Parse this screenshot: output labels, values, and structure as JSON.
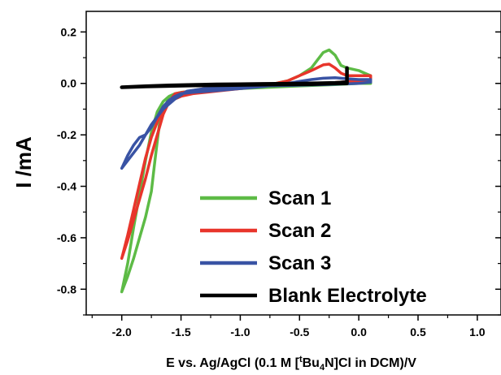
{
  "chart_data": {
    "type": "line",
    "title": "",
    "xlabel": {
      "before": "E vs. Ag/AgCl (0.1 M [",
      "sup": "t",
      "mid": "Bu",
      "sub": "4",
      "after": "N]Cl in DCM)/V"
    },
    "ylabel": "I /mA",
    "xlim": [
      -2.3,
      1.2
    ],
    "ylim": [
      -0.9,
      0.28
    ],
    "x_ticks": [
      "-2.0",
      "-1.5",
      "-1.0",
      "-0.5",
      "0.0",
      "0.5",
      "1.0"
    ],
    "x_tick_values": [
      -2.0,
      -1.5,
      -1.0,
      -0.5,
      0.0,
      0.5,
      1.0
    ],
    "y_ticks": [
      "0.2",
      "0.0",
      "-0.2",
      "-0.4",
      "-0.6",
      "-0.8"
    ],
    "y_tick_values": [
      0.2,
      0.0,
      -0.2,
      -0.4,
      -0.6,
      -0.8
    ],
    "grid": false,
    "legend_position": "bottom-right",
    "series": [
      {
        "name": "Scan 1",
        "color": "#5dbb46",
        "x": [
          -2.0,
          -1.95,
          -1.9,
          -1.85,
          -1.8,
          -1.75,
          -1.7,
          -1.65,
          -1.6,
          -1.55,
          -1.5,
          -1.4,
          -1.2,
          -1.0,
          -0.8,
          -0.6,
          -0.5,
          -0.4,
          -0.35,
          -0.3,
          -0.25,
          -0.2,
          -0.15,
          -0.1,
          -0.05,
          0.0,
          0.05,
          0.1,
          0.1,
          0.0,
          -0.2,
          -0.5,
          -1.0,
          -1.4,
          -1.6,
          -1.68,
          -1.72,
          -1.75,
          -1.8,
          -1.85,
          -1.9,
          -1.95,
          -2.0
        ],
        "y": [
          -0.81,
          -0.7,
          -0.56,
          -0.43,
          -0.3,
          -0.19,
          -0.11,
          -0.07,
          -0.05,
          -0.04,
          -0.035,
          -0.03,
          -0.025,
          -0.018,
          -0.01,
          0.01,
          0.03,
          0.06,
          0.09,
          0.12,
          0.13,
          0.11,
          0.07,
          0.06,
          0.055,
          0.05,
          0.04,
          0.03,
          0.0,
          0.0,
          -0.005,
          -0.01,
          -0.02,
          -0.03,
          -0.05,
          -0.15,
          -0.3,
          -0.42,
          -0.52,
          -0.6,
          -0.68,
          -0.75,
          -0.81
        ]
      },
      {
        "name": "Scan 2",
        "color": "#e8352b",
        "x": [
          -2.0,
          -1.95,
          -1.9,
          -1.85,
          -1.8,
          -1.75,
          -1.7,
          -1.65,
          -1.6,
          -1.55,
          -1.5,
          -1.4,
          -1.2,
          -1.0,
          -0.8,
          -0.6,
          -0.5,
          -0.4,
          -0.3,
          -0.25,
          -0.2,
          -0.15,
          -0.1,
          -0.05,
          0.0,
          0.1,
          0.1,
          0.0,
          -0.3,
          -0.8,
          -1.3,
          -1.55,
          -1.6,
          -1.65,
          -1.7,
          -1.75,
          -1.8,
          -1.85,
          -1.9,
          -1.95,
          -2.0
        ],
        "y": [
          -0.68,
          -0.59,
          -0.49,
          -0.39,
          -0.29,
          -0.21,
          -0.15,
          -0.1,
          -0.075,
          -0.06,
          -0.05,
          -0.04,
          -0.03,
          -0.02,
          -0.01,
          0.01,
          0.03,
          0.05,
          0.072,
          0.075,
          0.06,
          0.04,
          0.03,
          0.03,
          0.03,
          0.03,
          0.01,
          0.01,
          0.0,
          -0.01,
          -0.02,
          -0.04,
          -0.07,
          -0.12,
          -0.2,
          -0.28,
          -0.37,
          -0.45,
          -0.53,
          -0.61,
          -0.68
        ]
      },
      {
        "name": "Scan 3",
        "color": "#3953a4",
        "x": [
          -2.0,
          -1.95,
          -1.9,
          -1.85,
          -1.8,
          -1.75,
          -1.7,
          -1.65,
          -1.6,
          -1.55,
          -1.5,
          -1.4,
          -1.2,
          -1.0,
          -0.8,
          -0.6,
          -0.5,
          -0.4,
          -0.3,
          -0.2,
          -0.1,
          0.0,
          0.1,
          0.1,
          0.0,
          -0.3,
          -0.8,
          -1.3,
          -1.45,
          -1.5,
          -1.55,
          -1.6,
          -1.65,
          -1.7,
          -1.75,
          -1.8,
          -1.85,
          -1.9,
          -1.95,
          -2.0
        ],
        "y": [
          -0.33,
          -0.28,
          -0.24,
          -0.21,
          -0.2,
          -0.17,
          -0.13,
          -0.09,
          -0.065,
          -0.05,
          -0.04,
          -0.035,
          -0.028,
          -0.02,
          -0.012,
          0.0,
          0.008,
          0.015,
          0.02,
          0.022,
          0.018,
          0.015,
          0.015,
          0.005,
          0.0,
          -0.005,
          -0.01,
          -0.02,
          -0.03,
          -0.045,
          -0.06,
          -0.08,
          -0.1,
          -0.13,
          -0.16,
          -0.2,
          -0.24,
          -0.27,
          -0.3,
          -0.33
        ]
      },
      {
        "name": "Blank Electrolyte",
        "color": "#000000",
        "x": [
          -2.0,
          -1.8,
          -1.6,
          -1.4,
          -1.2,
          -1.0,
          -0.8,
          -0.6,
          -0.4,
          -0.2,
          -0.1,
          -0.1,
          -0.1,
          -0.2,
          -0.4,
          -0.6,
          -0.8,
          -1.0,
          -1.2,
          -1.4,
          -1.6,
          -1.8,
          -2.0
        ],
        "y": [
          -0.015,
          -0.012,
          -0.01,
          -0.008,
          -0.007,
          -0.006,
          -0.005,
          -0.004,
          -0.003,
          0.0,
          0.0,
          0.06,
          0.005,
          0.002,
          0.0,
          -0.001,
          -0.002,
          -0.003,
          -0.004,
          -0.006,
          -0.008,
          -0.011,
          -0.015
        ]
      }
    ]
  }
}
